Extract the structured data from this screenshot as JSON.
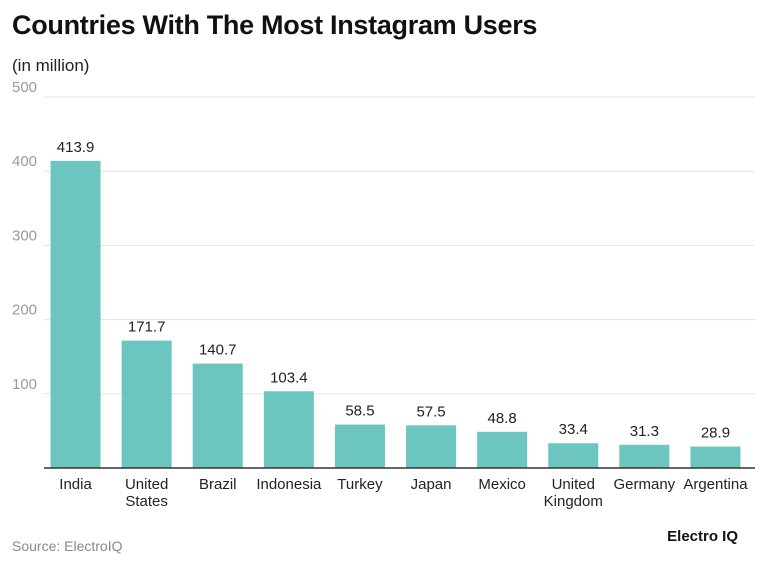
{
  "chart_data": {
    "type": "bar",
    "title": "Countries With The Most Instagram Users",
    "subtitle": "(in million)",
    "categories": [
      [
        "India"
      ],
      [
        "United",
        "States"
      ],
      [
        "Brazil"
      ],
      [
        "Indonesia"
      ],
      [
        "Turkey"
      ],
      [
        "Japan"
      ],
      [
        "Mexico"
      ],
      [
        "United",
        "Kingdom"
      ],
      [
        "Germany"
      ],
      [
        "Argentina"
      ]
    ],
    "values": [
      413.9,
      171.7,
      140.7,
      103.4,
      58.5,
      57.5,
      48.8,
      33.4,
      31.3,
      28.9
    ],
    "value_labels": [
      "413.9",
      "171.7",
      "140.7",
      "103.4",
      "58.5",
      "57.5",
      "48.8",
      "33.4",
      "31.3",
      "28.9"
    ],
    "ylim": [
      0,
      500
    ],
    "yticks": [
      "100",
      "200",
      "300",
      "400",
      "500"
    ],
    "xlabel": "",
    "ylabel": "",
    "grid": true,
    "bar_color": "#6cc6bf"
  },
  "footer": {
    "source": "Source: ElectroIQ",
    "brand": "Electro IQ"
  }
}
